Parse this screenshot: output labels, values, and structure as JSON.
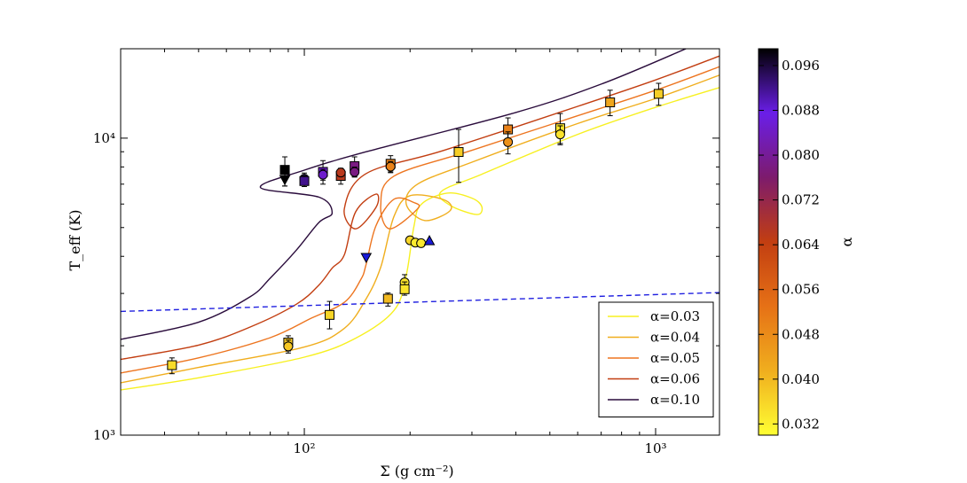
{
  "chart_data": {
    "type": "line",
    "xlabel": "Σ (g cm⁻²)",
    "ylabel": "T_eff (K)",
    "xscale": "log",
    "yscale": "log",
    "xlim": [
      30,
      1520
    ],
    "ylim": [
      1000,
      20000
    ],
    "x_ticks": [
      {
        "value": 100,
        "label": "10²"
      },
      {
        "value": 1000,
        "label": "10³"
      }
    ],
    "y_ticks": [
      {
        "value": 1000,
        "label": "10³"
      },
      {
        "value": 10000,
        "label": "10⁴"
      }
    ],
    "series": [
      {
        "name": "α=0.03",
        "alpha": 0.03,
        "color": "#f7f021",
        "points": [
          [
            30,
            1420
          ],
          [
            50,
            1560
          ],
          [
            100,
            1830
          ],
          [
            140,
            2120
          ],
          [
            180,
            2630
          ],
          [
            195,
            3450
          ],
          [
            205,
            5030
          ],
          [
            215,
            5980
          ],
          [
            255,
            6530
          ],
          [
            300,
            6280
          ],
          [
            320,
            5880
          ],
          [
            310,
            5530
          ],
          [
            260,
            5940
          ],
          [
            245,
            6600
          ],
          [
            320,
            7560
          ],
          [
            600,
            10300
          ],
          [
            1000,
            12700
          ],
          [
            1520,
            14800
          ]
        ]
      },
      {
        "name": "α=0.04",
        "alpha": 0.04,
        "color": "#f0ae1e",
        "points": [
          [
            30,
            1500
          ],
          [
            50,
            1690
          ],
          [
            100,
            1980
          ],
          [
            130,
            2290
          ],
          [
            150,
            2880
          ],
          [
            165,
            3680
          ],
          [
            180,
            5450
          ],
          [
            200,
            6400
          ],
          [
            250,
            6200
          ],
          [
            260,
            5700
          ],
          [
            220,
            5280
          ],
          [
            195,
            6000
          ],
          [
            210,
            7000
          ],
          [
            300,
            8300
          ],
          [
            600,
            11200
          ],
          [
            1000,
            13600
          ],
          [
            1520,
            16300
          ]
        ]
      },
      {
        "name": "α=0.05",
        "alpha": 0.05,
        "color": "#ed7520",
        "points": [
          [
            30,
            1620
          ],
          [
            50,
            1820
          ],
          [
            80,
            2130
          ],
          [
            105,
            2480
          ],
          [
            130,
            2800
          ],
          [
            145,
            3350
          ],
          [
            150,
            3770
          ],
          [
            160,
            5080
          ],
          [
            180,
            6230
          ],
          [
            205,
            6070
          ],
          [
            210,
            5780
          ],
          [
            175,
            4950
          ],
          [
            165,
            5950
          ],
          [
            180,
            7450
          ],
          [
            300,
            9100
          ],
          [
            600,
            11900
          ],
          [
            1000,
            14500
          ],
          [
            1520,
            17400
          ]
        ]
      },
      {
        "name": "α=0.06",
        "alpha": 0.06,
        "color": "#c23e11",
        "points": [
          [
            30,
            1800
          ],
          [
            50,
            2010
          ],
          [
            70,
            2310
          ],
          [
            95,
            2760
          ],
          [
            110,
            3200
          ],
          [
            120,
            3650
          ],
          [
            130,
            4050
          ],
          [
            140,
            5650
          ],
          [
            160,
            6480
          ],
          [
            160,
            5850
          ],
          [
            140,
            4950
          ],
          [
            130,
            5800
          ],
          [
            150,
            7600
          ],
          [
            250,
            9100
          ],
          [
            600,
            12800
          ],
          [
            1000,
            15700
          ],
          [
            1520,
            18900
          ]
        ]
      },
      {
        "name": "α=0.10",
        "alpha": 0.1,
        "color": "#2a0c3c",
        "points": [
          [
            30,
            2100
          ],
          [
            50,
            2400
          ],
          [
            70,
            2920
          ],
          [
            80,
            3380
          ],
          [
            95,
            4200
          ],
          [
            110,
            5200
          ],
          [
            120,
            5600
          ],
          [
            110,
            6330
          ],
          [
            75,
            6820
          ],
          [
            100,
            7800
          ],
          [
            150,
            9000
          ],
          [
            400,
            12200
          ],
          [
            700,
            15200
          ],
          [
            1220,
            20000
          ]
        ]
      },
      {
        "name": "",
        "alpha": null,
        "color": "#1f1fe0",
        "dashed": true,
        "points": [
          [
            30,
            2610
          ],
          [
            1520,
            3020
          ]
        ]
      }
    ],
    "scatter": [
      {
        "x": 42,
        "y": 1720,
        "ylo": 1610,
        "yhi": 1820,
        "marker": "square",
        "alpha": 0.035
      },
      {
        "x": 90,
        "y": 2050,
        "ylo": 1920,
        "yhi": 2160,
        "marker": "square",
        "alpha": 0.038
      },
      {
        "x": 90,
        "y": 1990,
        "ylo": 1890,
        "yhi": 2090,
        "marker": "circle",
        "alpha": 0.038
      },
      {
        "x": 118,
        "y": 2540,
        "ylo": 2280,
        "yhi": 2820,
        "marker": "square",
        "alpha": 0.036
      },
      {
        "x": 173,
        "y": 2880,
        "ylo": 2720,
        "yhi": 3010,
        "marker": "square",
        "alpha": 0.04
      },
      {
        "x": 193,
        "y": 3270,
        "ylo": 3060,
        "yhi": 3470,
        "marker": "circle",
        "alpha": 0.034
      },
      {
        "x": 193,
        "y": 3100,
        "ylo": 2960,
        "yhi": 3280,
        "marker": "square",
        "alpha": 0.034
      },
      {
        "x": 200,
        "y": 4530,
        "ylo": 4450,
        "yhi": 4620,
        "marker": "circle",
        "alpha": 0.036
      },
      {
        "x": 207,
        "y": 4450,
        "ylo": 4370,
        "yhi": 4530,
        "marker": "circle",
        "alpha": 0.033
      },
      {
        "x": 215,
        "y": 4430,
        "ylo": 4360,
        "yhi": 4510,
        "marker": "circle",
        "alpha": 0.033
      },
      {
        "x": 227,
        "y": 4500,
        "ylo": null,
        "yhi": null,
        "marker": "triangle-up",
        "alpha": null
      },
      {
        "x": 150,
        "y": 3980,
        "ylo": null,
        "yhi": null,
        "marker": "triangle-down",
        "alpha": null
      },
      {
        "x": 88,
        "y": 7820,
        "ylo": 6900,
        "yhi": 8650,
        "marker": "square",
        "alpha": 0.099
      },
      {
        "x": 88,
        "y": 7280,
        "ylo": 6900,
        "yhi": 7700,
        "marker": "triangle-down",
        "alpha": 0.099
      },
      {
        "x": 100,
        "y": 7300,
        "ylo": 6980,
        "yhi": 7630,
        "marker": "circle",
        "alpha": 0.092
      },
      {
        "x": 100,
        "y": 7170,
        "ylo": 6870,
        "yhi": 7480,
        "marker": "square",
        "alpha": 0.092
      },
      {
        "x": 113,
        "y": 7700,
        "ylo": 7000,
        "yhi": 8400,
        "marker": "square",
        "alpha": 0.085
      },
      {
        "x": 113,
        "y": 7530,
        "ylo": 7220,
        "yhi": 7850,
        "marker": "circle",
        "alpha": 0.085
      },
      {
        "x": 127,
        "y": 7460,
        "ylo": 7000,
        "yhi": 7920,
        "marker": "square",
        "alpha": 0.066
      },
      {
        "x": 127,
        "y": 7660,
        "ylo": 7450,
        "yhi": 7880,
        "marker": "circle",
        "alpha": 0.066
      },
      {
        "x": 139,
        "y": 8050,
        "ylo": 7400,
        "yhi": 8650,
        "marker": "square",
        "alpha": 0.078
      },
      {
        "x": 139,
        "y": 7690,
        "ylo": 7400,
        "yhi": 7990,
        "marker": "circle",
        "alpha": 0.078
      },
      {
        "x": 176,
        "y": 8200,
        "ylo": 7650,
        "yhi": 8730,
        "marker": "square",
        "alpha": 0.05
      },
      {
        "x": 176,
        "y": 8020,
        "ylo": 7700,
        "yhi": 8340,
        "marker": "circle",
        "alpha": 0.05
      },
      {
        "x": 275,
        "y": 8980,
        "ylo": 7100,
        "yhi": 10700,
        "marker": "square",
        "alpha": 0.037
      },
      {
        "x": 380,
        "y": 10700,
        "ylo": 9700,
        "yhi": 11700,
        "marker": "square",
        "alpha": 0.05
      },
      {
        "x": 380,
        "y": 9700,
        "ylo": 8850,
        "yhi": 10500,
        "marker": "circle",
        "alpha": 0.047
      },
      {
        "x": 535,
        "y": 10800,
        "ylo": 9500,
        "yhi": 12100,
        "marker": "square",
        "alpha": 0.034
      },
      {
        "x": 535,
        "y": 10300,
        "ylo": 9600,
        "yhi": 11000,
        "marker": "circle",
        "alpha": 0.034
      },
      {
        "x": 742,
        "y": 13200,
        "ylo": 11900,
        "yhi": 14500,
        "marker": "square",
        "alpha": 0.043
      },
      {
        "x": 1020,
        "y": 14100,
        "ylo": 12900,
        "yhi": 15300,
        "marker": "square",
        "alpha": 0.037
      }
    ],
    "legend": {
      "position": "bottom-right",
      "entries": [
        "α=0.03",
        "α=0.04",
        "α=0.05",
        "α=0.06",
        "α=0.10"
      ]
    },
    "colorbar": {
      "label": "α",
      "min": 0.03,
      "max": 0.099,
      "ticks": [
        "0.032",
        "0.040",
        "0.048",
        "0.056",
        "0.064",
        "0.072",
        "0.080",
        "0.088",
        "0.096"
      ],
      "tick_values": [
        0.032,
        0.04,
        0.048,
        0.056,
        0.064,
        0.072,
        0.08,
        0.088,
        0.096
      ],
      "colormap": [
        "#ffff33",
        "#f0ae1e",
        "#e67116",
        "#c23e11",
        "#7d1b6c",
        "#6a1ee8",
        "#000000"
      ]
    },
    "errorbar_color": "#000000",
    "marker_edge_color": "#000000",
    "triangle_color": "#1a1ad9"
  }
}
